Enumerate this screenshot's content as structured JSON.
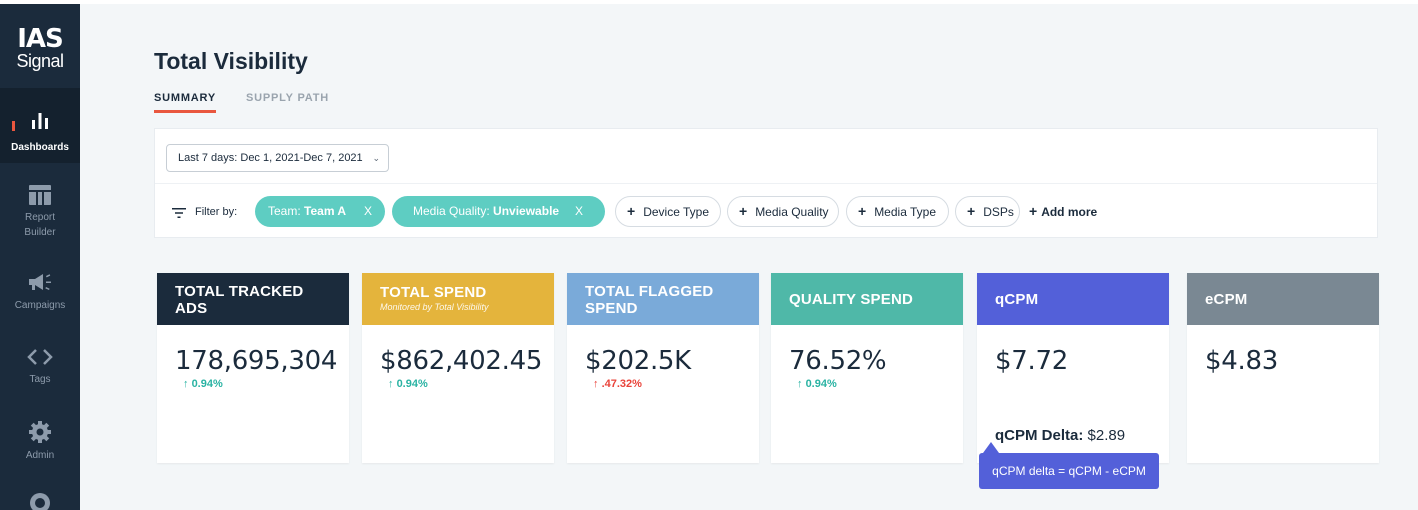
{
  "app": {
    "logo_main": "IAS",
    "logo_sub": "Signal"
  },
  "sidebar": {
    "items": [
      {
        "label": "Dashboards",
        "icon": "bar-chart-icon",
        "active": true
      },
      {
        "label": "Report Builder",
        "icon": "table-icon",
        "active": false
      },
      {
        "label": "Campaigns",
        "icon": "megaphone-icon",
        "active": false
      },
      {
        "label": "Tags",
        "icon": "code-icon",
        "active": false
      },
      {
        "label": "Admin",
        "icon": "gear-icon",
        "active": false
      }
    ]
  },
  "page": {
    "title": "Total Visibility",
    "tabs": [
      {
        "label": "SUMMARY",
        "active": true
      },
      {
        "label": "SUPPLY PATH",
        "active": false
      }
    ]
  },
  "filters": {
    "date_range": "Last 7 days: Dec 1, 2021-Dec 7, 2021",
    "filter_by_label": "Filter by:",
    "active_filters": [
      {
        "key": "Team:",
        "value": "Team A",
        "remove": "X"
      },
      {
        "key": "Media Quality:",
        "value": "Unviewable",
        "remove": "X"
      }
    ],
    "add_filters": [
      "Device Type",
      "Media Quality",
      "Media Type",
      "DSPs"
    ],
    "add_more": "Add more",
    "plus": "+"
  },
  "kpis": [
    {
      "title": "TOTAL TRACKED ADS",
      "subtitle": "",
      "value": "178,695,304",
      "change": "0.94%",
      "direction": "up",
      "color": "#1b2b3c"
    },
    {
      "title": "TOTAL SPEND",
      "subtitle": "Monitored by Total Visibility",
      "value": "$862,402.45",
      "change": "0.94%",
      "direction": "up",
      "color": "#e4b43c"
    },
    {
      "title": "TOTAL FLAGGED SPEND",
      "subtitle": "",
      "value": "$202.5K",
      "change": ".47.32%",
      "direction": "down",
      "color": "#7aaad9"
    },
    {
      "title": "QUALITY SPEND",
      "subtitle": "",
      "value": "76.52%",
      "change": "0.94%",
      "direction": "up",
      "color": "#4fb8a8"
    },
    {
      "title": "qCPM",
      "subtitle": "",
      "value": "$7.72",
      "change": "",
      "direction": "",
      "color": "#5360d9"
    },
    {
      "title": "eCPM",
      "subtitle": "",
      "value": "$4.83",
      "change": "",
      "direction": "",
      "color": "#7a8893"
    }
  ],
  "qcpm_delta": {
    "label": "qCPM Delta:",
    "value": "$2.89",
    "tooltip": "qCPM delta = qCPM - eCPM"
  },
  "arrows": {
    "up": "↑",
    "down": "↑"
  },
  "colors": {
    "accent": "#e9573f",
    "sidebar_bg": "#1b2b3c",
    "chip_active": "#5ecdc2"
  }
}
